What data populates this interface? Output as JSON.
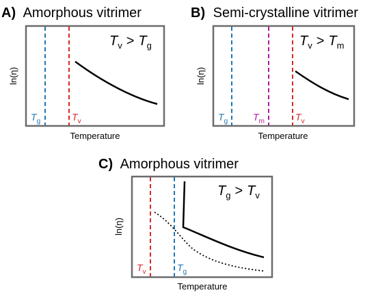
{
  "colors": {
    "tg": "#1f77b4",
    "tv": "#d62728",
    "tm": "#b0179f",
    "frame": "#6b6b6b",
    "curve": "#000000"
  },
  "panels": [
    {
      "letter": "A)",
      "title": "Amorphous vitrimer",
      "ylabel": "ln(η)",
      "xlabel": "Temperature",
      "condition": {
        "left_sym": "T",
        "left_sub": "v",
        "op": ">",
        "right_sym": "T",
        "right_sub": "g"
      },
      "lines": [
        {
          "sym": "T",
          "sub": "g",
          "color_key": "tg"
        },
        {
          "sym": "T",
          "sub": "v",
          "color_key": "tv"
        }
      ]
    },
    {
      "letter": "B)",
      "title": "Semi-crystalline vitrimer",
      "ylabel": "ln(η)",
      "xlabel": "Temperature",
      "condition": {
        "left_sym": "T",
        "left_sub": "v",
        "op": ">",
        "right_sym": "T",
        "right_sub": "m"
      },
      "lines": [
        {
          "sym": "T",
          "sub": "g",
          "color_key": "tg"
        },
        {
          "sym": "T",
          "sub": "m",
          "color_key": "tm"
        },
        {
          "sym": "T",
          "sub": "v",
          "color_key": "tv"
        }
      ]
    },
    {
      "letter": "C)",
      "title": "Amorphous vitrimer",
      "ylabel": "ln(η)",
      "xlabel": "Temperature",
      "condition": {
        "left_sym": "T",
        "left_sub": "g",
        "op": ">",
        "right_sym": "T",
        "right_sub": "v"
      },
      "lines": [
        {
          "sym": "T",
          "sub": "v",
          "color_key": "tv"
        },
        {
          "sym": "T",
          "sub": "g",
          "color_key": "tg"
        }
      ]
    }
  ]
}
